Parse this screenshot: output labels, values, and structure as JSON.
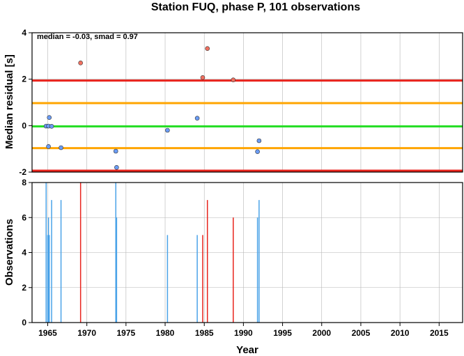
{
  "chart_data": {
    "title": "Station FUQ, phase P, 101 observations",
    "xlabel": "Year",
    "xlim": [
      1963,
      2018
    ],
    "x_ticks": [
      1965,
      1970,
      1975,
      1980,
      1985,
      1990,
      1995,
      2000,
      2005,
      2010,
      2015
    ],
    "residual_panel": {
      "type": "scatter",
      "ylabel": "Median residual [s]",
      "ylim": [
        -2,
        4
      ],
      "y_ticks": [
        -2,
        0,
        2,
        4
      ],
      "annotation": "median = -0.03, smad = 0.97",
      "reference_lines": [
        {
          "y": 1.94,
          "color": "#e8231c"
        },
        {
          "y": -1.94,
          "color": "#e8231c"
        },
        {
          "y": 0.97,
          "color": "#ffa500"
        },
        {
          "y": -0.97,
          "color": "#ffa500"
        },
        {
          "y": -0.03,
          "color": "#22dd22"
        }
      ],
      "points": [
        {
          "x": 1964.8,
          "y": -0.02,
          "color": "#6a9cf5"
        },
        {
          "x": 1965.1,
          "y": -0.02,
          "color": "#6a9cf5"
        },
        {
          "x": 1965.2,
          "y": 0.35,
          "color": "#6a9cf5"
        },
        {
          "x": 1965.5,
          "y": -0.03,
          "color": "#6a9cf5"
        },
        {
          "x": 1965.1,
          "y": -0.9,
          "color": "#6a9cf5"
        },
        {
          "x": 1966.7,
          "y": -0.95,
          "color": "#6a9cf5"
        },
        {
          "x": 1969.2,
          "y": 2.7,
          "color": "#f07060"
        },
        {
          "x": 1973.7,
          "y": -1.1,
          "color": "#6a9cf5"
        },
        {
          "x": 1973.8,
          "y": -1.8,
          "color": "#6a9cf5"
        },
        {
          "x": 1980.3,
          "y": -0.2,
          "color": "#6a9cf5"
        },
        {
          "x": 1984.1,
          "y": 0.32,
          "color": "#6a9cf5"
        },
        {
          "x": 1984.8,
          "y": 2.07,
          "color": "#f07060"
        },
        {
          "x": 1985.4,
          "y": 3.32,
          "color": "#f07060"
        },
        {
          "x": 1988.7,
          "y": 1.97,
          "color": "#f07060"
        },
        {
          "x": 1991.8,
          "y": -1.12,
          "color": "#6a9cf5"
        },
        {
          "x": 1992.0,
          "y": -0.65,
          "color": "#6a9cf5"
        }
      ]
    },
    "count_panel": {
      "type": "bar",
      "ylabel": "Observations",
      "ylim": [
        0,
        8
      ],
      "y_ticks": [
        0,
        2,
        4,
        6,
        8
      ],
      "bars": [
        {
          "x": 1964.8,
          "value": 8,
          "color": "#4aa3e8"
        },
        {
          "x": 1965.0,
          "value": 5,
          "color": "#4aa3e8"
        },
        {
          "x": 1965.1,
          "value": 6,
          "color": "#4aa3e8"
        },
        {
          "x": 1965.2,
          "value": 5,
          "color": "#4aa3e8"
        },
        {
          "x": 1965.5,
          "value": 7,
          "color": "#4aa3e8"
        },
        {
          "x": 1966.7,
          "value": 7,
          "color": "#4aa3e8"
        },
        {
          "x": 1969.2,
          "value": 8,
          "color": "#e8231c"
        },
        {
          "x": 1973.7,
          "value": 8,
          "color": "#4aa3e8"
        },
        {
          "x": 1973.8,
          "value": 6,
          "color": "#4aa3e8"
        },
        {
          "x": 1980.3,
          "value": 5,
          "color": "#4aa3e8"
        },
        {
          "x": 1984.1,
          "value": 5,
          "color": "#4aa3e8"
        },
        {
          "x": 1984.8,
          "value": 5,
          "color": "#e8231c"
        },
        {
          "x": 1985.4,
          "value": 7,
          "color": "#e8231c"
        },
        {
          "x": 1988.7,
          "value": 6,
          "color": "#e8231c"
        },
        {
          "x": 1991.8,
          "value": 6,
          "color": "#4aa3e8"
        },
        {
          "x": 1992.0,
          "value": 7,
          "color": "#4aa3e8"
        }
      ]
    }
  }
}
